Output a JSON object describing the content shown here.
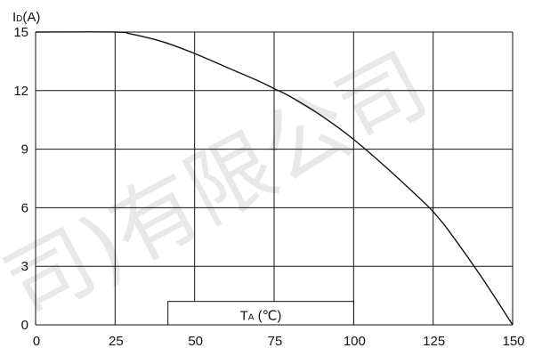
{
  "chart_data": {
    "type": "line",
    "title": "",
    "ylabel": {
      "main": "I",
      "sub": "D",
      "unit": "(A)"
    },
    "xlabel": {
      "main": "T",
      "sub": "A",
      "unit": " (℃)"
    },
    "xlim": [
      0,
      150
    ],
    "ylim": [
      0,
      15
    ],
    "x_ticks": [
      0,
      25,
      50,
      75,
      100,
      125,
      150
    ],
    "y_ticks": [
      0,
      3,
      6,
      9,
      12,
      15
    ],
    "grid": true,
    "legend": "none",
    "series": [
      {
        "x": [
          0,
          25,
          30,
          40,
          50,
          60,
          70,
          75,
          80,
          90,
          100,
          110,
          120,
          125,
          130,
          140,
          150
        ],
        "y": [
          15,
          15,
          14.9,
          14.5,
          13.9,
          13.2,
          12.5,
          12.1,
          11.7,
          10.7,
          9.5,
          8.1,
          6.6,
          5.8,
          4.8,
          2.5,
          0
        ]
      }
    ],
    "watermark": "司)有限公司"
  }
}
